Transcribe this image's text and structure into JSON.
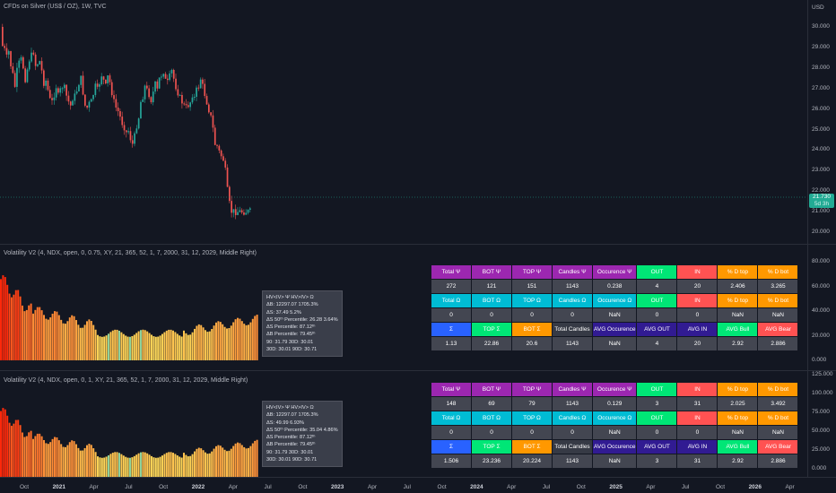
{
  "main": {
    "title": "CFDs on Silver (US$ / OZ), 1W, TVC",
    "currency": "USD",
    "yticks": [
      "30.000",
      "29.000",
      "28.000",
      "27.000",
      "26.000",
      "25.000",
      "24.000",
      "23.000",
      "22.000",
      "21.000",
      "20.000"
    ],
    "last_price": "21.730",
    "countdown": "5d 3h",
    "colors": {
      "up": "#26a69a",
      "down": "#ef5350"
    }
  },
  "panes": [
    {
      "title": "Volatility V2 (4, NDX, open, 0, 0.75, XY, 21, 365, 52, 1, 7, 2000, 31, 12, 2029, Middle Right)",
      "yticks": [
        "80.000",
        "60.000",
        "40.000",
        "20.000",
        "0.000"
      ],
      "info": [
        "HV<IV> Ψ  HV>IV> Ω",
        "ΔB: 12297.07  1705.3%",
        "ΔS: 37.49  5.2%",
        "ΔS 50ᵗʰ Percentile: 26.28  3.64%",
        "ΔS Percentile: 87.12ᵗʰ",
        "ΔB Percentile: 79.45ᵗʰ",
        "90: 31.79  30D: 30.01",
        "30D: 30.01  90D: 30.71"
      ],
      "table": {
        "rows": [
          [
            "Total Ψ",
            "BOT Ψ",
            "TOP Ψ",
            "Candles Ψ",
            "Occurence Ψ",
            "OUT",
            "IN",
            "% D top",
            "% D bot"
          ],
          [
            "272",
            "121",
            "151",
            "1143",
            "0.238",
            "4",
            "20",
            "2.406",
            "3.265"
          ],
          [
            "Total Ω",
            "BOT Ω",
            "TOP Ω",
            "Candles Ω",
            "Occurence Ω",
            "OUT",
            "IN",
            "% D top",
            "% D bot"
          ],
          [
            "0",
            "0",
            "0",
            "0",
            "NaN",
            "0",
            "0",
            "NaN",
            "NaN"
          ],
          [
            "Σ",
            "TOP Σ",
            "BOT Σ",
            "Total Candles",
            "AVG Occurence",
            "AVG OUT",
            "AVG IN",
            "AVG Bull",
            "AVG Bear"
          ],
          [
            "1.13",
            "22.86",
            "20.6",
            "1143",
            "NaN",
            "4",
            "20",
            "2.92",
            "2.886"
          ]
        ]
      }
    },
    {
      "title": "Volatility V2 (4, NDX, open, 0, 1, XY, 21, 365, 52, 1, 7, 2000, 31, 12, 2029, Middle Right)",
      "yticks": [
        "125.000",
        "100.000",
        "75.000",
        "50.000",
        "25.000",
        "0.000"
      ],
      "info": [
        "HV<IV> Ψ  HV>IV> Ω",
        "ΔB: 12297.07  1705.3%",
        "ΔS: 49.99  6.93%",
        "ΔS 50ᵗʰ Percentile: 35.04  4.86%",
        "ΔS Percentile: 87.12ᵗʰ",
        "ΔB Percentile: 79.45ᵗʰ",
        "90: 31.79  30D: 30.01",
        "30D: 30.01  90D: 30.71"
      ],
      "table": {
        "rows": [
          [
            "Total Ψ",
            "BOT Ψ",
            "TOP Ψ",
            "Candles Ψ",
            "Occurence Ψ",
            "OUT",
            "IN",
            "% D top",
            "% D bot"
          ],
          [
            "148",
            "69",
            "79",
            "1143",
            "0.129",
            "3",
            "31",
            "2.025",
            "3.492"
          ],
          [
            "Total Ω",
            "BOT Ω",
            "TOP Ω",
            "Candles Ω",
            "Occurence Ω",
            "OUT",
            "IN",
            "% D top",
            "% D bot"
          ],
          [
            "0",
            "0",
            "0",
            "0",
            "NaN",
            "0",
            "0",
            "NaN",
            "NaN"
          ],
          [
            "Σ",
            "TOP Σ",
            "BOT Σ",
            "Total Candles",
            "AVG Occurence",
            "AVG OUT",
            "AVG IN",
            "AVG Bull",
            "AVG Bear"
          ],
          [
            "1.506",
            "23.236",
            "20.224",
            "1143",
            "NaN",
            "3",
            "31",
            "2.92",
            "2.886"
          ]
        ]
      }
    }
  ],
  "xaxis": [
    "Oct",
    "2021",
    "Apr",
    "Jul",
    "Oct",
    "2022",
    "Apr",
    "Jul",
    "Oct",
    "2023",
    "Apr",
    "Jul",
    "Oct",
    "2024",
    "Apr",
    "Jul",
    "Oct",
    "2025",
    "Apr",
    "Jul",
    "Oct",
    "2026",
    "Apr"
  ]
}
